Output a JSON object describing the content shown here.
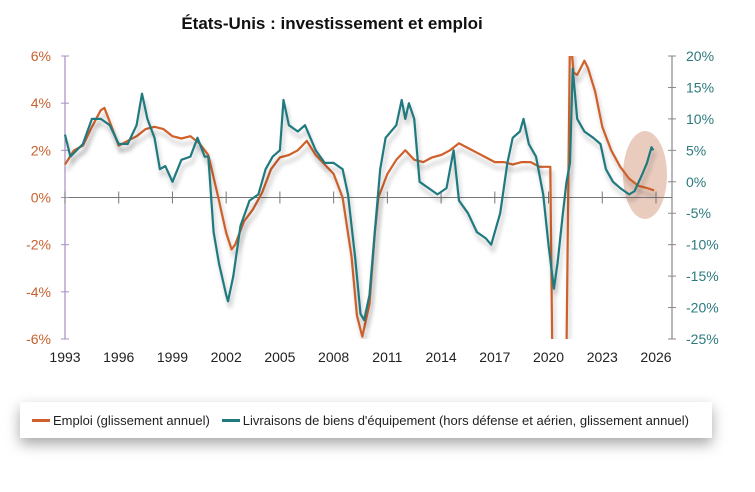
{
  "chart_data": {
    "type": "line",
    "title": "États-Unis : investissement et emploi",
    "x_ticks": [
      "1993",
      "1996",
      "1999",
      "2002",
      "2005",
      "2008",
      "2011",
      "2014",
      "2017",
      "2020",
      "2023",
      "2026"
    ],
    "xlim": [
      1993,
      2026
    ],
    "y_left": {
      "ticks": [
        "6%",
        "4%",
        "2%",
        "0%",
        "-2%",
        "-4%",
        "-6%"
      ],
      "ylim": [
        -6,
        6
      ]
    },
    "y_right": {
      "ticks": [
        "20%",
        "15%",
        "10%",
        "5%",
        "0%",
        "-5%",
        "-10%",
        "-15%",
        "-20%",
        "-25%"
      ],
      "ylim": [
        -25,
        20
      ]
    },
    "grid": false,
    "legend_placement": "bottom",
    "highlight": "ellipse around 2024-2026",
    "series": [
      {
        "name": "Emploi (glissement annuel)",
        "axis": "left",
        "color": "#d0602a",
        "x": [
          1993,
          1993.5,
          1994,
          1994.5,
          1995,
          1995.2,
          1995.5,
          1996,
          1996.5,
          1997,
          1997.5,
          1998,
          1998.5,
          1999,
          1999.5,
          2000,
          2000.5,
          2001,
          2001.5,
          2002,
          2002.3,
          2002.5,
          2003,
          2003.5,
          2004,
          2004.5,
          2005,
          2005.5,
          2006,
          2006.5,
          2007,
          2007.5,
          2008,
          2008.5,
          2009,
          2009.3,
          2009.6,
          2010,
          2010.3,
          2010.5,
          2011,
          2011.5,
          2012,
          2012.5,
          2013,
          2013.5,
          2014,
          2014.5,
          2015,
          2015.5,
          2016,
          2016.5,
          2017,
          2017.5,
          2018,
          2018.5,
          2019,
          2019.5,
          2020.1,
          2020.3,
          2021.0,
          2021.2,
          2021.4,
          2021.6,
          2022.0,
          2022.2,
          2022.6,
          2023,
          2023.5,
          2024,
          2024.5,
          2025,
          2025.5,
          2025.9
        ],
        "y": [
          1.4,
          2.0,
          2.2,
          3.0,
          3.7,
          3.8,
          3.2,
          2.2,
          2.4,
          2.6,
          2.9,
          3.0,
          2.9,
          2.6,
          2.5,
          2.6,
          2.3,
          1.8,
          0.2,
          -1.5,
          -2.2,
          -2.0,
          -1.0,
          -0.5,
          0.2,
          1.2,
          1.7,
          1.8,
          2.0,
          2.4,
          1.8,
          1.4,
          1.0,
          0.0,
          -2.5,
          -5.0,
          -5.9,
          -4.5,
          -1.5,
          0.0,
          1.0,
          1.6,
          2.0,
          1.6,
          1.5,
          1.7,
          1.8,
          2.0,
          2.3,
          2.1,
          1.9,
          1.7,
          1.5,
          1.5,
          1.4,
          1.5,
          1.5,
          1.3,
          1.3,
          -13.0,
          -6.5,
          7.0,
          5.3,
          5.2,
          5.8,
          5.5,
          4.5,
          3.0,
          2.0,
          1.3,
          0.8,
          0.5,
          0.4,
          0.3
        ]
      },
      {
        "name": "Livraisons de biens d'équipement (hors défense et aérien, glissement annuel)",
        "axis": "right",
        "color": "#1f7a80",
        "x": [
          1993,
          1993.3,
          1994,
          1994.5,
          1995,
          1995.5,
          1996,
          1996.5,
          1997,
          1997.3,
          1997.6,
          1998,
          1998.3,
          1998.6,
          1999,
          1999.5,
          2000,
          2000.4,
          2000.8,
          2001,
          2001.3,
          2001.6,
          2002,
          2002.1,
          2002.4,
          2002.8,
          2003.3,
          2003.8,
          2004.2,
          2004.6,
          2005,
          2005.2,
          2005.5,
          2006,
          2006.4,
          2007,
          2007.5,
          2008,
          2008.5,
          2008.8,
          2009.2,
          2009.5,
          2009.7,
          2010,
          2010.3,
          2010.6,
          2010.9,
          2011.5,
          2011.8,
          2012,
          2012.2,
          2012.5,
          2012.8,
          2013.3,
          2013.8,
          2014.3,
          2014.7,
          2015,
          2015.5,
          2016,
          2016.5,
          2016.8,
          2017.3,
          2017.7,
          2018,
          2018.4,
          2018.6,
          2018.9,
          2019.3,
          2019.7,
          2020.0,
          2020.3,
          2020.5,
          2020.8,
          2021.0,
          2021.2,
          2021.35,
          2021.6,
          2022,
          2022.5,
          2022.9,
          2023.2,
          2023.6,
          2024,
          2024.5,
          2024.8,
          2025.2,
          2025.5,
          2025.75,
          2025.85
        ],
        "y": [
          7.5,
          4,
          6,
          10,
          10,
          9,
          6,
          6,
          9,
          14,
          10,
          7,
          2,
          2.5,
          0,
          3.5,
          4,
          7,
          4,
          4,
          -8,
          -13,
          -18,
          -19,
          -15,
          -7,
          -3,
          -2,
          2,
          4,
          5,
          13,
          9,
          8,
          9,
          5,
          3,
          3,
          2,
          -2,
          -12,
          -21,
          -22,
          -18,
          -8,
          2,
          7,
          9,
          13,
          10,
          12.5,
          10,
          0,
          -1,
          -2,
          -1,
          5,
          -3,
          -5,
          -8,
          -9,
          -10,
          -5,
          3,
          7,
          8,
          10,
          6,
          4,
          -2,
          -10,
          -17,
          -13,
          -5,
          0,
          3,
          18,
          10,
          8,
          7,
          6,
          2,
          0,
          -1,
          -2,
          -1.5,
          1,
          3,
          5.5,
          5
        ]
      }
    ]
  }
}
